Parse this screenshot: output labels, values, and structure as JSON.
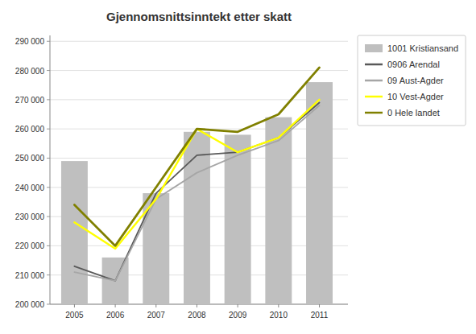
{
  "chart_data": {
    "type": "bar",
    "title": "Gjennomsnittsinntekt etter skatt",
    "x": [
      2005,
      2006,
      2007,
      2008,
      2009,
      2010,
      2011
    ],
    "xlim": [
      2004.4,
      2011.7
    ],
    "xticks": [
      2005,
      2006,
      2007,
      2008,
      2009,
      2010,
      2011
    ],
    "series": [
      {
        "name": "1001 Kristiansand",
        "type": "bar",
        "color": "#bfbfbf",
        "values": [
          249000,
          216000,
          238000,
          259000,
          258000,
          264000,
          276000
        ]
      },
      {
        "name": "0906 Arendal",
        "type": "line",
        "color": "#595959",
        "values": [
          213000,
          208000,
          238000,
          251000,
          252000,
          257000,
          269000
        ]
      },
      {
        "name": "09 Aust-Agder",
        "type": "line",
        "color": "#a6a6a6",
        "values": [
          211000,
          208000,
          236000,
          245000,
          251000,
          256000,
          268000
        ]
      },
      {
        "name": "10 Vest-Agder",
        "type": "line",
        "color": "#ffff00",
        "values": [
          228000,
          219000,
          236000,
          260000,
          252000,
          257000,
          270000
        ]
      },
      {
        "name": "0 Hele landet",
        "type": "line",
        "color": "#808000",
        "values": [
          234000,
          220000,
          240000,
          260000,
          259000,
          265000,
          281000
        ]
      }
    ],
    "ylim": [
      200000,
      292000
    ],
    "yticks": [
      {
        "value": 200000,
        "label": "200 000"
      },
      {
        "value": 210000,
        "label": "210 000"
      },
      {
        "value": 220000,
        "label": "220 000"
      },
      {
        "value": 230000,
        "label": "230 000"
      },
      {
        "value": 240000,
        "label": "240 000"
      },
      {
        "value": 250000,
        "label": "250 000"
      },
      {
        "value": 260000,
        "label": "260 000"
      },
      {
        "value": 270000,
        "label": "270 000"
      },
      {
        "value": 280000,
        "label": "280 000"
      },
      {
        "value": 290000,
        "label": "290 000"
      }
    ],
    "grid": true,
    "legend": "right"
  }
}
